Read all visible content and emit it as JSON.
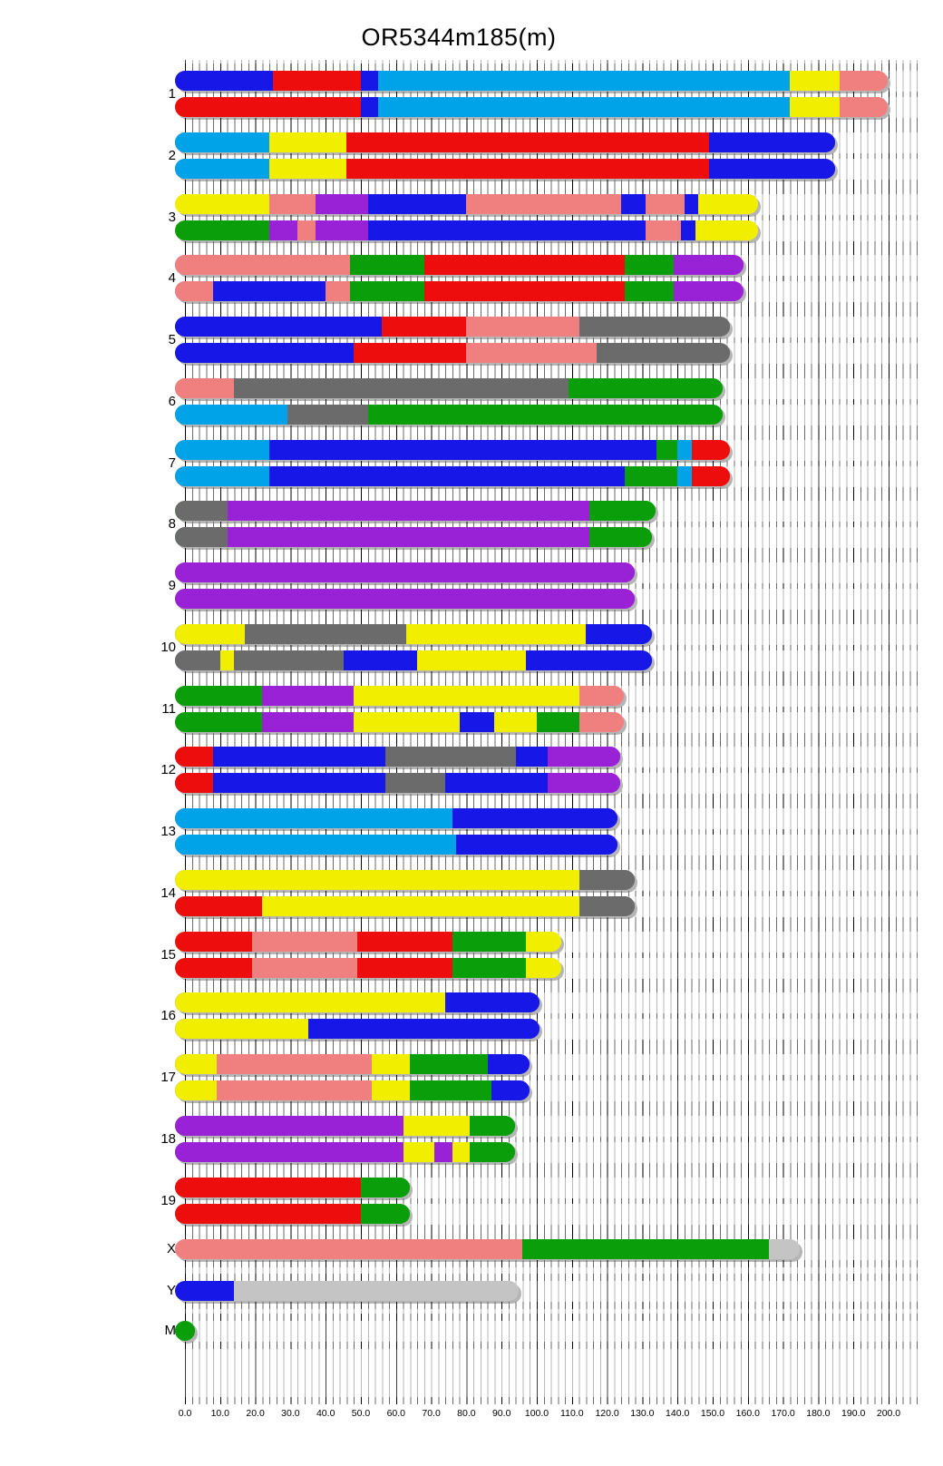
{
  "title": "OR5344m185(m)",
  "axis": {
    "min": 0,
    "max": 200,
    "label_step": 10,
    "minor_grid_step": 2,
    "major_grid_step": 20,
    "tick_labels": [
      "0.0",
      "10.0",
      "20.0",
      "30.0",
      "40.0",
      "50.0",
      "60.0",
      "70.0",
      "80.0",
      "90.0",
      "100.0",
      "110.0",
      "120.0",
      "130.0",
      "140.0",
      "150.0",
      "160.0",
      "170.0",
      "180.0",
      "190.0",
      "200.0"
    ]
  },
  "palette": {
    "blue": "#1717e8",
    "lightblue": "#00a3e8",
    "red": "#ee0d0d",
    "yellow": "#f2ee00",
    "pink": "#f08080",
    "green": "#0a9e0a",
    "purple": "#9a22d6",
    "grey": "#6b6b6b",
    "silver": "#c4c4c4"
  },
  "chart_data": {
    "type": "segmented-bar chromosome ideogram (haplotype painting, two homologs per autosome)",
    "x_unit": "genome position (Mb)",
    "x_range": [
      0,
      200
    ],
    "grid": "minor vertical lines every 2, dark lines every 20, ruler ticks above/below each bar",
    "legend_position": "none",
    "chromosomes": [
      {
        "name": "1",
        "length": 197,
        "bars": [
          [
            [
              "blue",
              0,
              25
            ],
            [
              "red",
              25,
              50
            ],
            [
              "blue",
              50,
              55
            ],
            [
              "lightblue",
              55,
              172
            ],
            [
              "yellow",
              172,
              186
            ],
            [
              "pink",
              186,
              197
            ]
          ],
          [
            [
              "red",
              0,
              50
            ],
            [
              "blue",
              50,
              55
            ],
            [
              "lightblue",
              55,
              172
            ],
            [
              "yellow",
              172,
              186
            ],
            [
              "pink",
              186,
              197
            ]
          ]
        ]
      },
      {
        "name": "2",
        "length": 182,
        "bars": [
          [
            [
              "lightblue",
              0,
              24
            ],
            [
              "yellow",
              24,
              46
            ],
            [
              "red",
              46,
              149
            ],
            [
              "blue",
              149,
              182
            ]
          ],
          [
            [
              "lightblue",
              0,
              24
            ],
            [
              "yellow",
              24,
              46
            ],
            [
              "red",
              46,
              149
            ],
            [
              "blue",
              149,
              182
            ]
          ]
        ]
      },
      {
        "name": "3",
        "length": 160,
        "bars": [
          [
            [
              "yellow",
              0,
              24
            ],
            [
              "pink",
              24,
              37
            ],
            [
              "purple",
              37,
              52
            ],
            [
              "blue",
              52,
              80
            ],
            [
              "pink",
              80,
              124
            ],
            [
              "blue",
              124,
              131
            ],
            [
              "pink",
              131,
              142
            ],
            [
              "blue",
              142,
              146
            ],
            [
              "yellow",
              146,
              160
            ]
          ],
          [
            [
              "green",
              0,
              24
            ],
            [
              "purple",
              24,
              32
            ],
            [
              "pink",
              32,
              37
            ],
            [
              "purple",
              37,
              52
            ],
            [
              "blue",
              52,
              131
            ],
            [
              "pink",
              131,
              141
            ],
            [
              "blue",
              141,
              145
            ],
            [
              "yellow",
              145,
              160
            ]
          ]
        ]
      },
      {
        "name": "4",
        "length": 156,
        "bars": [
          [
            [
              "pink",
              0,
              47
            ],
            [
              "green",
              47,
              68
            ],
            [
              "red",
              68,
              125
            ],
            [
              "green",
              125,
              139
            ],
            [
              "purple",
              139,
              156
            ]
          ],
          [
            [
              "pink",
              0,
              8
            ],
            [
              "blue",
              8,
              40
            ],
            [
              "pink",
              40,
              47
            ],
            [
              "green",
              47,
              68
            ],
            [
              "red",
              68,
              125
            ],
            [
              "green",
              125,
              139
            ],
            [
              "purple",
              139,
              156
            ]
          ]
        ]
      },
      {
        "name": "5",
        "length": 152,
        "bars": [
          [
            [
              "blue",
              0,
              56
            ],
            [
              "red",
              56,
              80
            ],
            [
              "pink",
              80,
              112
            ],
            [
              "grey",
              112,
              152
            ]
          ],
          [
            [
              "blue",
              0,
              48
            ],
            [
              "red",
              48,
              80
            ],
            [
              "pink",
              80,
              117
            ],
            [
              "grey",
              117,
              152
            ]
          ]
        ]
      },
      {
        "name": "6",
        "length": 150,
        "bars": [
          [
            [
              "pink",
              0,
              14
            ],
            [
              "grey",
              14,
              109
            ],
            [
              "green",
              109,
              150
            ]
          ],
          [
            [
              "lightblue",
              0,
              29
            ],
            [
              "grey",
              29,
              52
            ],
            [
              "green",
              52,
              150
            ]
          ]
        ]
      },
      {
        "name": "7",
        "length": 152,
        "bars": [
          [
            [
              "lightblue",
              0,
              24
            ],
            [
              "blue",
              24,
              134
            ],
            [
              "green",
              134,
              140
            ],
            [
              "lightblue",
              140,
              144
            ],
            [
              "red",
              144,
              152
            ]
          ],
          [
            [
              "lightblue",
              0,
              24
            ],
            [
              "blue",
              24,
              125
            ],
            [
              "green",
              125,
              140
            ],
            [
              "lightblue",
              140,
              144
            ],
            [
              "red",
              144,
              152
            ]
          ]
        ]
      },
      {
        "name": "8",
        "length": 131,
        "bars": [
          [
            [
              "grey",
              0,
              12
            ],
            [
              "purple",
              12,
              115
            ],
            [
              "green",
              115,
              131
            ]
          ],
          [
            [
              "grey",
              0,
              12
            ],
            [
              "purple",
              12,
              115
            ],
            [
              "green",
              115,
              130
            ]
          ]
        ]
      },
      {
        "name": "9",
        "length": 125,
        "bars": [
          [
            [
              "purple",
              0,
              125
            ]
          ],
          [
            [
              "purple",
              0,
              125
            ]
          ]
        ]
      },
      {
        "name": "10",
        "length": 130,
        "bars": [
          [
            [
              "yellow",
              0,
              17
            ],
            [
              "grey",
              17,
              63
            ],
            [
              "yellow",
              63,
              114
            ],
            [
              "blue",
              114,
              130
            ]
          ],
          [
            [
              "grey",
              0,
              10
            ],
            [
              "yellow",
              10,
              14
            ],
            [
              "grey",
              14,
              45
            ],
            [
              "blue",
              45,
              66
            ],
            [
              "yellow",
              66,
              97
            ],
            [
              "blue",
              97,
              130
            ]
          ]
        ]
      },
      {
        "name": "11",
        "length": 122,
        "bars": [
          [
            [
              "green",
              0,
              22
            ],
            [
              "purple",
              22,
              48
            ],
            [
              "yellow",
              48,
              112
            ],
            [
              "pink",
              112,
              122
            ]
          ],
          [
            [
              "green",
              0,
              22
            ],
            [
              "purple",
              22,
              48
            ],
            [
              "yellow",
              48,
              78
            ],
            [
              "blue",
              78,
              88
            ],
            [
              "yellow",
              88,
              100
            ],
            [
              "green",
              100,
              112
            ],
            [
              "pink",
              112,
              122
            ]
          ]
        ]
      },
      {
        "name": "12",
        "length": 121,
        "bars": [
          [
            [
              "red",
              0,
              8
            ],
            [
              "blue",
              8,
              57
            ],
            [
              "grey",
              57,
              94
            ],
            [
              "blue",
              94,
              103
            ],
            [
              "purple",
              103,
              121
            ]
          ],
          [
            [
              "red",
              0,
              8
            ],
            [
              "blue",
              8,
              57
            ],
            [
              "grey",
              57,
              74
            ],
            [
              "blue",
              74,
              103
            ],
            [
              "purple",
              103,
              121
            ]
          ]
        ]
      },
      {
        "name": "13",
        "length": 120,
        "bars": [
          [
            [
              "lightblue",
              0,
              76
            ],
            [
              "blue",
              76,
              120
            ]
          ],
          [
            [
              "lightblue",
              0,
              77
            ],
            [
              "blue",
              77,
              120
            ]
          ]
        ]
      },
      {
        "name": "14",
        "length": 125,
        "bars": [
          [
            [
              "yellow",
              0,
              112
            ],
            [
              "grey",
              112,
              125
            ]
          ],
          [
            [
              "red",
              0,
              22
            ],
            [
              "yellow",
              22,
              112
            ],
            [
              "grey",
              112,
              125
            ]
          ]
        ]
      },
      {
        "name": "15",
        "length": 104,
        "bars": [
          [
            [
              "red",
              0,
              19
            ],
            [
              "pink",
              19,
              49
            ],
            [
              "red",
              49,
              76
            ],
            [
              "green",
              76,
              97
            ],
            [
              "yellow",
              97,
              104
            ]
          ],
          [
            [
              "red",
              0,
              19
            ],
            [
              "pink",
              19,
              49
            ],
            [
              "red",
              49,
              76
            ],
            [
              "green",
              76,
              97
            ],
            [
              "yellow",
              97,
              104
            ]
          ]
        ]
      },
      {
        "name": "16",
        "length": 98,
        "bars": [
          [
            [
              "yellow",
              0,
              74
            ],
            [
              "blue",
              74,
              98
            ]
          ],
          [
            [
              "yellow",
              0,
              35
            ],
            [
              "blue",
              35,
              98
            ]
          ]
        ]
      },
      {
        "name": "17",
        "length": 95,
        "bars": [
          [
            [
              "yellow",
              0,
              9
            ],
            [
              "pink",
              9,
              53
            ],
            [
              "yellow",
              53,
              64
            ],
            [
              "green",
              64,
              86
            ],
            [
              "blue",
              86,
              95
            ]
          ],
          [
            [
              "yellow",
              0,
              9
            ],
            [
              "pink",
              9,
              53
            ],
            [
              "yellow",
              53,
              64
            ],
            [
              "green",
              64,
              87
            ],
            [
              "blue",
              87,
              95
            ]
          ]
        ]
      },
      {
        "name": "18",
        "length": 91,
        "bars": [
          [
            [
              "purple",
              0,
              62
            ],
            [
              "yellow",
              62,
              81
            ],
            [
              "green",
              81,
              91
            ]
          ],
          [
            [
              "purple",
              0,
              62
            ],
            [
              "yellow",
              62,
              71
            ],
            [
              "purple",
              71,
              76
            ],
            [
              "yellow",
              76,
              81
            ],
            [
              "green",
              81,
              91
            ]
          ]
        ]
      },
      {
        "name": "19",
        "length": 61,
        "bars": [
          [
            [
              "red",
              0,
              50
            ],
            [
              "green",
              50,
              61
            ]
          ],
          [
            [
              "red",
              0,
              50
            ],
            [
              "green",
              50,
              61
            ]
          ]
        ]
      },
      {
        "name": "X",
        "length": 172,
        "bars": [
          [
            [
              "pink",
              0,
              96
            ],
            [
              "green",
              96,
              166
            ],
            [
              "silver",
              166,
              172
            ]
          ]
        ]
      },
      {
        "name": "Y",
        "length": 92,
        "bars": [
          [
            [
              "blue",
              0,
              14
            ],
            [
              "silver",
              14,
              92
            ]
          ]
        ]
      },
      {
        "name": "M",
        "length": 0,
        "bars": [
          [
            [
              "green",
              0,
              0
            ]
          ]
        ]
      }
    ]
  }
}
